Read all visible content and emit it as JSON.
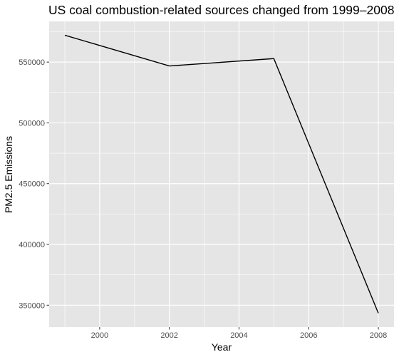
{
  "chart_data": {
    "type": "line",
    "title": "US coal combustion-related sources changed from 1999–2008",
    "xlabel": "Year",
    "ylabel": "PM2.5 Emissions",
    "x": [
      1999,
      2002,
      2005,
      2008
    ],
    "series": [
      {
        "values": [
          572126,
          546789,
          552881,
          343432
        ],
        "color": "#000000"
      }
    ],
    "xlim": [
      1998.55,
      2008.45
    ],
    "ylim": [
      332000,
      583500
    ],
    "x_ticks": [
      2000,
      2002,
      2004,
      2006,
      2008
    ],
    "y_ticks": [
      350000,
      400000,
      450000,
      500000,
      550000
    ],
    "x_tick_labels": [
      "2000",
      "2002",
      "2004",
      "2006",
      "2008"
    ],
    "y_tick_labels": [
      "350000",
      "400000",
      "450000",
      "500000",
      "550000"
    ],
    "grid": true,
    "panel_background": "#e5e5e5",
    "grid_color": "#ffffff"
  }
}
